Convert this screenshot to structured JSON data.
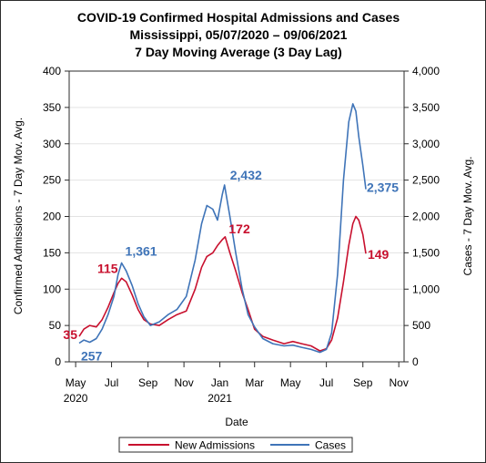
{
  "chart_data": {
    "type": "line",
    "title": "COVID-19 Confirmed Hospital Admissions and Cases",
    "subtitle_1": "Mississippi, 05/07/2020 – 09/06/2021",
    "subtitle_2": "7 Day Moving Average (3 Day Lag)",
    "xlabel": "Date",
    "ylabel_left": "Confirmed Admissions - 7 Day Mov. Avg.",
    "ylabel_right": "Cases - 7 Day Mov. Avg.",
    "ylim_left": [
      0,
      400
    ],
    "ylim_right": [
      0,
      4000
    ],
    "y_ticks_left": [
      "0",
      "50",
      "100",
      "150",
      "200",
      "250",
      "300",
      "350",
      "400"
    ],
    "y_ticks_right": [
      "0",
      "500",
      "1,000",
      "1,500",
      "2,000",
      "2,500",
      "3,000",
      "3,500",
      "4,000"
    ],
    "x_ticks": [
      {
        "date": "2020-05-01",
        "label": "May",
        "sublabel": "2020"
      },
      {
        "date": "2020-07-01",
        "label": "Jul",
        "sublabel": ""
      },
      {
        "date": "2020-09-01",
        "label": "Sep",
        "sublabel": ""
      },
      {
        "date": "2020-11-01",
        "label": "Nov",
        "sublabel": ""
      },
      {
        "date": "2021-01-01",
        "label": "Jan",
        "sublabel": "2021"
      },
      {
        "date": "2021-03-01",
        "label": "Mar",
        "sublabel": ""
      },
      {
        "date": "2021-05-01",
        "label": "May",
        "sublabel": ""
      },
      {
        "date": "2021-07-01",
        "label": "Jul",
        "sublabel": ""
      },
      {
        "date": "2021-09-01",
        "label": "Sep",
        "sublabel": ""
      },
      {
        "date": "2021-11-01",
        "label": "Nov",
        "sublabel": ""
      }
    ],
    "x_range": [
      "2020-04-20",
      "2021-11-10"
    ],
    "grid": "horizontal",
    "legend": "bottom",
    "series": [
      {
        "name": "New Admissions",
        "axis": "left",
        "color": "#c8102e",
        "points": [
          [
            "2020-05-07",
            35
          ],
          [
            "2020-05-15",
            45
          ],
          [
            "2020-05-25",
            50
          ],
          [
            "2020-06-05",
            48
          ],
          [
            "2020-06-15",
            58
          ],
          [
            "2020-06-25",
            75
          ],
          [
            "2020-07-05",
            95
          ],
          [
            "2020-07-12",
            108
          ],
          [
            "2020-07-18",
            115
          ],
          [
            "2020-07-26",
            110
          ],
          [
            "2020-08-05",
            92
          ],
          [
            "2020-08-15",
            72
          ],
          [
            "2020-08-25",
            58
          ],
          [
            "2020-09-05",
            52
          ],
          [
            "2020-09-20",
            50
          ],
          [
            "2020-10-05",
            58
          ],
          [
            "2020-10-20",
            65
          ],
          [
            "2020-11-05",
            70
          ],
          [
            "2020-11-20",
            100
          ],
          [
            "2020-12-01",
            130
          ],
          [
            "2020-12-10",
            145
          ],
          [
            "2020-12-20",
            150
          ],
          [
            "2020-12-28",
            160
          ],
          [
            "2021-01-05",
            168
          ],
          [
            "2021-01-10",
            172
          ],
          [
            "2021-01-18",
            150
          ],
          [
            "2021-01-28",
            125
          ],
          [
            "2021-02-08",
            95
          ],
          [
            "2021-02-18",
            72
          ],
          [
            "2021-03-01",
            45
          ],
          [
            "2021-03-15",
            35
          ],
          [
            "2021-04-01",
            30
          ],
          [
            "2021-04-20",
            25
          ],
          [
            "2021-05-05",
            28
          ],
          [
            "2021-05-20",
            25
          ],
          [
            "2021-06-05",
            22
          ],
          [
            "2021-06-20",
            15
          ],
          [
            "2021-07-01",
            18
          ],
          [
            "2021-07-10",
            30
          ],
          [
            "2021-07-20",
            60
          ],
          [
            "2021-07-30",
            110
          ],
          [
            "2021-08-08",
            160
          ],
          [
            "2021-08-15",
            190
          ],
          [
            "2021-08-20",
            200
          ],
          [
            "2021-08-25",
            195
          ],
          [
            "2021-09-01",
            175
          ],
          [
            "2021-09-06",
            149
          ]
        ]
      },
      {
        "name": "Cases",
        "axis": "right",
        "color": "#3f74b8",
        "points": [
          [
            "2020-05-07",
            257
          ],
          [
            "2020-05-15",
            300
          ],
          [
            "2020-05-25",
            270
          ],
          [
            "2020-06-05",
            320
          ],
          [
            "2020-06-15",
            450
          ],
          [
            "2020-06-25",
            650
          ],
          [
            "2020-07-05",
            900
          ],
          [
            "2020-07-12",
            1200
          ],
          [
            "2020-07-18",
            1361
          ],
          [
            "2020-07-26",
            1250
          ],
          [
            "2020-08-05",
            1050
          ],
          [
            "2020-08-15",
            800
          ],
          [
            "2020-08-25",
            620
          ],
          [
            "2020-09-05",
            500
          ],
          [
            "2020-09-20",
            550
          ],
          [
            "2020-10-05",
            650
          ],
          [
            "2020-10-20",
            720
          ],
          [
            "2020-11-05",
            900
          ],
          [
            "2020-11-20",
            1400
          ],
          [
            "2020-12-01",
            1900
          ],
          [
            "2020-12-10",
            2150
          ],
          [
            "2020-12-20",
            2100
          ],
          [
            "2020-12-28",
            1950
          ],
          [
            "2021-01-05",
            2300
          ],
          [
            "2021-01-09",
            2432
          ],
          [
            "2021-01-18",
            2000
          ],
          [
            "2021-01-28",
            1500
          ],
          [
            "2021-02-08",
            1000
          ],
          [
            "2021-02-18",
            650
          ],
          [
            "2021-03-01",
            480
          ],
          [
            "2021-03-15",
            320
          ],
          [
            "2021-04-01",
            250
          ],
          [
            "2021-04-20",
            220
          ],
          [
            "2021-05-05",
            230
          ],
          [
            "2021-05-20",
            200
          ],
          [
            "2021-06-05",
            170
          ],
          [
            "2021-06-20",
            130
          ],
          [
            "2021-07-01",
            170
          ],
          [
            "2021-07-10",
            400
          ],
          [
            "2021-07-20",
            1200
          ],
          [
            "2021-07-30",
            2500
          ],
          [
            "2021-08-08",
            3300
          ],
          [
            "2021-08-15",
            3550
          ],
          [
            "2021-08-20",
            3450
          ],
          [
            "2021-08-25",
            3100
          ],
          [
            "2021-09-01",
            2700
          ],
          [
            "2021-09-06",
            2375
          ]
        ]
      }
    ],
    "annotations": [
      {
        "text": "35",
        "series": "New Admissions",
        "date": "2020-05-07",
        "value": 35
      },
      {
        "text": "115",
        "series": "New Admissions",
        "date": "2020-07-18",
        "value": 115
      },
      {
        "text": "172",
        "series": "New Admissions",
        "date": "2021-01-10",
        "value": 172
      },
      {
        "text": "149",
        "series": "New Admissions",
        "date": "2021-09-06",
        "value": 149
      },
      {
        "text": "257",
        "series": "Cases",
        "date": "2020-05-07",
        "value": 257
      },
      {
        "text": "1,361",
        "series": "Cases",
        "date": "2020-07-18",
        "value": 1361
      },
      {
        "text": "2,432",
        "series": "Cases",
        "date": "2021-01-09",
        "value": 2432
      },
      {
        "text": "2,375",
        "series": "Cases",
        "date": "2021-09-06",
        "value": 2375
      }
    ]
  }
}
